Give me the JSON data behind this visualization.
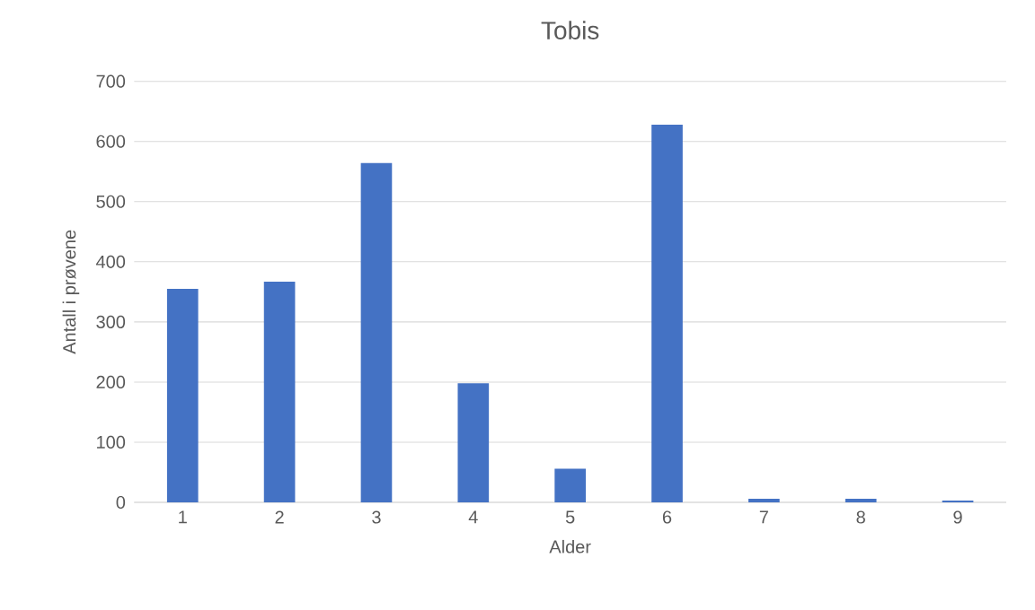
{
  "chart_data": {
    "type": "bar",
    "title": "Tobis",
    "xlabel": "Alder",
    "ylabel": "Antall i prøvene",
    "categories": [
      "1",
      "2",
      "3",
      "4",
      "5",
      "6",
      "7",
      "8",
      "9"
    ],
    "values": [
      355,
      367,
      564,
      198,
      56,
      628,
      6,
      6,
      3
    ],
    "color": "#4472c4",
    "ylim": [
      0,
      700
    ],
    "yticks": [
      0,
      100,
      200,
      300,
      400,
      500,
      600,
      700
    ],
    "grid": "y"
  }
}
